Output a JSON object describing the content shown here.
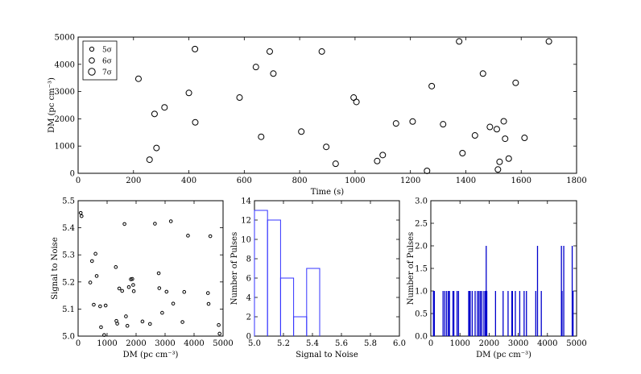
{
  "chart_data": [
    {
      "type": "scatter",
      "xlabel": "Time (s)",
      "ylabel": "DM (pc cm⁻³)",
      "xlim": [
        0,
        1800
      ],
      "ylim": [
        0,
        5000
      ],
      "xticks": [
        0,
        200,
        400,
        600,
        800,
        1000,
        1200,
        1400,
        1600,
        1800
      ],
      "yticks": [
        0,
        1000,
        2000,
        3000,
        4000,
        5000
      ],
      "marker": "open-circle",
      "legend": {
        "placement": "top-left",
        "entries": [
          {
            "label": "5σ",
            "size": "small"
          },
          {
            "label": "6σ",
            "size": "medium"
          },
          {
            "label": "7σ",
            "size": "large"
          }
        ]
      },
      "points": [
        {
          "x": 218,
          "y": 3470
        },
        {
          "x": 258,
          "y": 500
        },
        {
          "x": 276,
          "y": 2180
        },
        {
          "x": 283,
          "y": 930
        },
        {
          "x": 312,
          "y": 2420
        },
        {
          "x": 400,
          "y": 2950
        },
        {
          "x": 422,
          "y": 4560
        },
        {
          "x": 423,
          "y": 1870
        },
        {
          "x": 583,
          "y": 2780
        },
        {
          "x": 642,
          "y": 3900
        },
        {
          "x": 661,
          "y": 1340
        },
        {
          "x": 692,
          "y": 4470
        },
        {
          "x": 705,
          "y": 3660
        },
        {
          "x": 806,
          "y": 1530
        },
        {
          "x": 880,
          "y": 4470
        },
        {
          "x": 896,
          "y": 970
        },
        {
          "x": 930,
          "y": 350
        },
        {
          "x": 995,
          "y": 2780
        },
        {
          "x": 1005,
          "y": 2620
        },
        {
          "x": 1080,
          "y": 450
        },
        {
          "x": 1100,
          "y": 670
        },
        {
          "x": 1148,
          "y": 1830
        },
        {
          "x": 1208,
          "y": 1900
        },
        {
          "x": 1260,
          "y": 90
        },
        {
          "x": 1277,
          "y": 3200
        },
        {
          "x": 1318,
          "y": 1800
        },
        {
          "x": 1376,
          "y": 4840
        },
        {
          "x": 1388,
          "y": 740
        },
        {
          "x": 1433,
          "y": 1390
        },
        {
          "x": 1462,
          "y": 3660
        },
        {
          "x": 1487,
          "y": 1700
        },
        {
          "x": 1512,
          "y": 1620
        },
        {
          "x": 1516,
          "y": 140
        },
        {
          "x": 1522,
          "y": 420
        },
        {
          "x": 1537,
          "y": 1910
        },
        {
          "x": 1542,
          "y": 1270
        },
        {
          "x": 1555,
          "y": 540
        },
        {
          "x": 1580,
          "y": 3320
        },
        {
          "x": 1612,
          "y": 1300
        },
        {
          "x": 1700,
          "y": 4840
        }
      ]
    },
    {
      "type": "scatter",
      "xlabel": "DM (pc cm⁻³)",
      "ylabel": "Signal to Noise",
      "xlim": [
        0,
        5000
      ],
      "ylim": [
        5.0,
        5.5
      ],
      "xticks": [
        0,
        1000,
        2000,
        3000,
        4000,
        5000
      ],
      "yticks": [
        5.0,
        5.1,
        5.2,
        5.3,
        5.4,
        5.5
      ],
      "ytick_labels": [
        "5.0",
        "5.1",
        "5.2",
        "5.3",
        "5.4",
        "5.5"
      ],
      "marker": "open-circle",
      "points": [
        {
          "x": 90,
          "y": 5.455
        },
        {
          "x": 120,
          "y": 5.443
        },
        {
          "x": 420,
          "y": 5.198
        },
        {
          "x": 480,
          "y": 5.277
        },
        {
          "x": 540,
          "y": 5.116
        },
        {
          "x": 600,
          "y": 5.304
        },
        {
          "x": 640,
          "y": 5.222
        },
        {
          "x": 760,
          "y": 5.11
        },
        {
          "x": 790,
          "y": 5.033
        },
        {
          "x": 900,
          "y": 5.004
        },
        {
          "x": 950,
          "y": 5.113
        },
        {
          "x": 1300,
          "y": 5.255
        },
        {
          "x": 1320,
          "y": 5.056
        },
        {
          "x": 1350,
          "y": 5.046
        },
        {
          "x": 1420,
          "y": 5.176
        },
        {
          "x": 1520,
          "y": 5.167
        },
        {
          "x": 1600,
          "y": 5.414
        },
        {
          "x": 1650,
          "y": 5.073
        },
        {
          "x": 1700,
          "y": 5.038
        },
        {
          "x": 1750,
          "y": 5.181
        },
        {
          "x": 1820,
          "y": 5.21
        },
        {
          "x": 1870,
          "y": 5.211
        },
        {
          "x": 1900,
          "y": 5.189
        },
        {
          "x": 1920,
          "y": 5.166
        },
        {
          "x": 2220,
          "y": 5.054
        },
        {
          "x": 2480,
          "y": 5.045
        },
        {
          "x": 2650,
          "y": 5.415
        },
        {
          "x": 2780,
          "y": 5.232
        },
        {
          "x": 2800,
          "y": 5.177
        },
        {
          "x": 2900,
          "y": 5.086
        },
        {
          "x": 3050,
          "y": 5.164
        },
        {
          "x": 3200,
          "y": 5.424
        },
        {
          "x": 3280,
          "y": 5.12
        },
        {
          "x": 3600,
          "y": 5.052
        },
        {
          "x": 3660,
          "y": 5.163
        },
        {
          "x": 3790,
          "y": 5.371
        },
        {
          "x": 4480,
          "y": 5.159
        },
        {
          "x": 4500,
          "y": 5.119
        },
        {
          "x": 4560,
          "y": 5.369
        },
        {
          "x": 4850,
          "y": 5.041
        },
        {
          "x": 4880,
          "y": 5.009
        }
      ]
    },
    {
      "type": "histogram",
      "xlabel": "Signal to Noise",
      "ylabel": "Number of Pulses",
      "xlim": [
        5.0,
        6.0
      ],
      "ylim": [
        0,
        14
      ],
      "xticks": [
        5.0,
        5.2,
        5.4,
        5.6,
        5.8,
        6.0
      ],
      "xtick_labels": [
        "5.0",
        "5.2",
        "5.4",
        "5.6",
        "5.8",
        "6.0"
      ],
      "yticks": [
        0,
        2,
        4,
        6,
        8,
        10,
        12,
        14
      ],
      "color": "#3333ff",
      "bins": [
        {
          "x0": 5.0,
          "x1": 5.09,
          "count": 13
        },
        {
          "x0": 5.09,
          "x1": 5.18,
          "count": 12
        },
        {
          "x0": 5.18,
          "x1": 5.27,
          "count": 6
        },
        {
          "x0": 5.27,
          "x1": 5.36,
          "count": 2
        },
        {
          "x0": 5.36,
          "x1": 5.45,
          "count": 7
        }
      ]
    },
    {
      "type": "bar",
      "xlabel": "DM (pc cm⁻³)",
      "ylabel": "Number of Pulses",
      "xlim": [
        0,
        5000
      ],
      "ylim": [
        0,
        3.0
      ],
      "xticks": [
        0,
        1000,
        2000,
        3000,
        4000,
        5000
      ],
      "yticks": [
        0,
        0.5,
        1.0,
        1.5,
        2.0,
        2.5,
        3.0
      ],
      "ytick_labels": [
        "0.0",
        "0.5",
        "1.0",
        "1.5",
        "2.0",
        "2.5",
        "3.0"
      ],
      "color": "#0000cc",
      "bars": [
        {
          "x": 90,
          "v": 1
        },
        {
          "x": 120,
          "v": 1
        },
        {
          "x": 420,
          "v": 1
        },
        {
          "x": 480,
          "v": 1
        },
        {
          "x": 540,
          "v": 1
        },
        {
          "x": 600,
          "v": 1
        },
        {
          "x": 640,
          "v": 1
        },
        {
          "x": 760,
          "v": 1
        },
        {
          "x": 790,
          "v": 1
        },
        {
          "x": 900,
          "v": 1
        },
        {
          "x": 950,
          "v": 1
        },
        {
          "x": 1300,
          "v": 1
        },
        {
          "x": 1320,
          "v": 1
        },
        {
          "x": 1350,
          "v": 1
        },
        {
          "x": 1420,
          "v": 1
        },
        {
          "x": 1520,
          "v": 1
        },
        {
          "x": 1600,
          "v": 1
        },
        {
          "x": 1650,
          "v": 1
        },
        {
          "x": 1700,
          "v": 1
        },
        {
          "x": 1750,
          "v": 1
        },
        {
          "x": 1820,
          "v": 1
        },
        {
          "x": 1870,
          "v": 1
        },
        {
          "x": 1900,
          "v": 2
        },
        {
          "x": 1920,
          "v": 1
        },
        {
          "x": 2220,
          "v": 1
        },
        {
          "x": 2480,
          "v": 1
        },
        {
          "x": 2650,
          "v": 1
        },
        {
          "x": 2780,
          "v": 1
        },
        {
          "x": 2800,
          "v": 1
        },
        {
          "x": 2900,
          "v": 1
        },
        {
          "x": 3050,
          "v": 1
        },
        {
          "x": 3200,
          "v": 1
        },
        {
          "x": 3280,
          "v": 1
        },
        {
          "x": 3600,
          "v": 1
        },
        {
          "x": 3660,
          "v": 2
        },
        {
          "x": 3790,
          "v": 1
        },
        {
          "x": 4480,
          "v": 2
        },
        {
          "x": 4500,
          "v": 1
        },
        {
          "x": 4560,
          "v": 2
        },
        {
          "x": 4850,
          "v": 2
        },
        {
          "x": 4880,
          "v": 1
        }
      ]
    }
  ]
}
